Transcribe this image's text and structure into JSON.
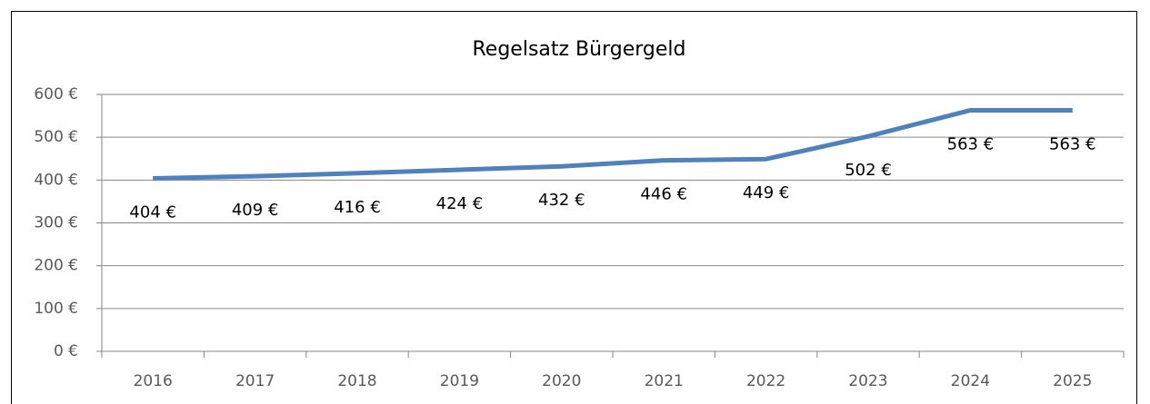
{
  "chart_data": {
    "type": "line",
    "title": "Regelsatz Bürgergeld",
    "categories": [
      "2016",
      "2017",
      "2018",
      "2019",
      "2020",
      "2021",
      "2022",
      "2023",
      "2024",
      "2025"
    ],
    "series": [
      {
        "name": "Regelsatz",
        "color": "#4f81bd",
        "values": [
          404,
          409,
          416,
          424,
          432,
          446,
          449,
          502,
          563,
          563
        ],
        "value_labels": [
          "404 €",
          "409 €",
          "416 €",
          "424 €",
          "432 €",
          "446 €",
          "449 €",
          "502 €",
          "563 €",
          "563 €"
        ]
      }
    ],
    "ylim": [
      0,
      600
    ],
    "yticks": [
      {
        "value": 0,
        "label": "0 €"
      },
      {
        "value": 100,
        "label": "100 €"
      },
      {
        "value": 200,
        "label": "200 €"
      },
      {
        "value": 300,
        "label": "300 €"
      },
      {
        "value": 400,
        "label": "400 €"
      },
      {
        "value": 500,
        "label": "500 €"
      },
      {
        "value": 600,
        "label": "600 €"
      }
    ],
    "grid": true
  }
}
